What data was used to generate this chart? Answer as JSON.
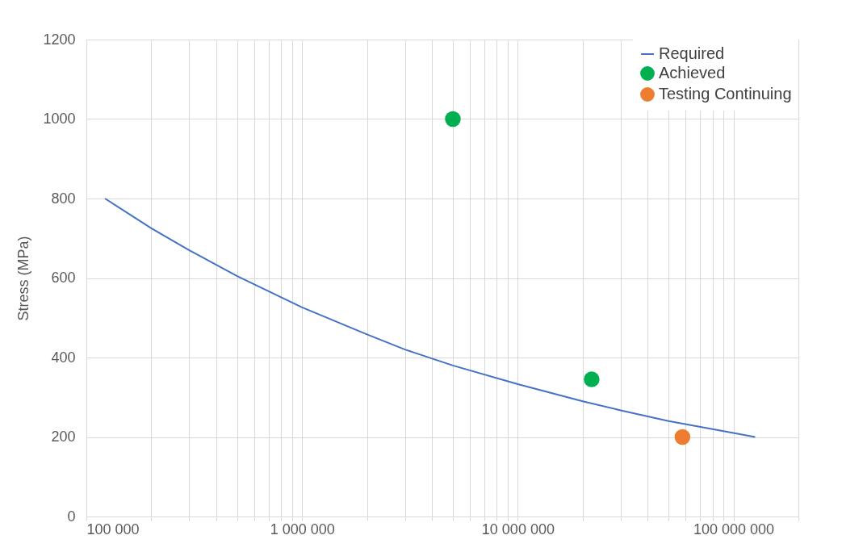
{
  "chart_data": {
    "type": "line",
    "ylabel": "Stress (MPa)",
    "log": "x",
    "grid": true,
    "legend": "top right",
    "xlim": [
      100000,
      200000000
    ],
    "ylim": [
      0,
      1200
    ],
    "yticks": [
      0,
      200,
      400,
      600,
      800,
      1000,
      1200
    ],
    "xticks": [
      {
        "value": 100000,
        "label": "100 000"
      },
      {
        "value": 200000,
        "label": null
      },
      {
        "value": 300000,
        "label": null
      },
      {
        "value": 400000,
        "label": null
      },
      {
        "value": 500000,
        "label": null
      },
      {
        "value": 600000,
        "label": null
      },
      {
        "value": 700000,
        "label": null
      },
      {
        "value": 800000,
        "label": null
      },
      {
        "value": 900000,
        "label": null
      },
      {
        "value": 1000000,
        "label": "1 000 000"
      },
      {
        "value": 2000000,
        "label": null
      },
      {
        "value": 3000000,
        "label": null
      },
      {
        "value": 4000000,
        "label": null
      },
      {
        "value": 5000000,
        "label": null
      },
      {
        "value": 6000000,
        "label": null
      },
      {
        "value": 7000000,
        "label": null
      },
      {
        "value": 8000000,
        "label": null
      },
      {
        "value": 9000000,
        "label": null
      },
      {
        "value": 10000000,
        "label": "10 000 000"
      },
      {
        "value": 20000000,
        "label": null
      },
      {
        "value": 30000000,
        "label": null
      },
      {
        "value": 40000000,
        "label": null
      },
      {
        "value": 50000000,
        "label": null
      },
      {
        "value": 60000000,
        "label": null
      },
      {
        "value": 70000000,
        "label": null
      },
      {
        "value": 80000000,
        "label": null
      },
      {
        "value": 90000000,
        "label": null
      },
      {
        "value": 100000000,
        "label": "100 000 000"
      },
      {
        "value": 200000000,
        "label": null
      }
    ],
    "series": [
      {
        "name": "Required",
        "color": "#4472c4",
        "marker": "none",
        "line_style": "solid",
        "x": [
          122000,
          200000,
          300000,
          500000,
          1000000,
          2000000,
          3000000,
          5000000,
          10000000,
          20000000,
          30000000,
          50000000,
          100000000,
          126000000
        ],
        "values": [
          800,
          725,
          670,
          605,
          526,
          458,
          420,
          380,
          333,
          290,
          267,
          240,
          210,
          200
        ]
      },
      {
        "name": "Achieved",
        "type": "scatter",
        "color": "#00b050",
        "marker": "circle",
        "x": [
          5000000,
          22000000
        ],
        "values": [
          1000,
          345
        ]
      },
      {
        "name": "Testing Continuing",
        "type": "scatter",
        "color": "#ed7d31",
        "marker": "circle",
        "x": [
          58000000
        ],
        "values": [
          200
        ]
      }
    ]
  }
}
